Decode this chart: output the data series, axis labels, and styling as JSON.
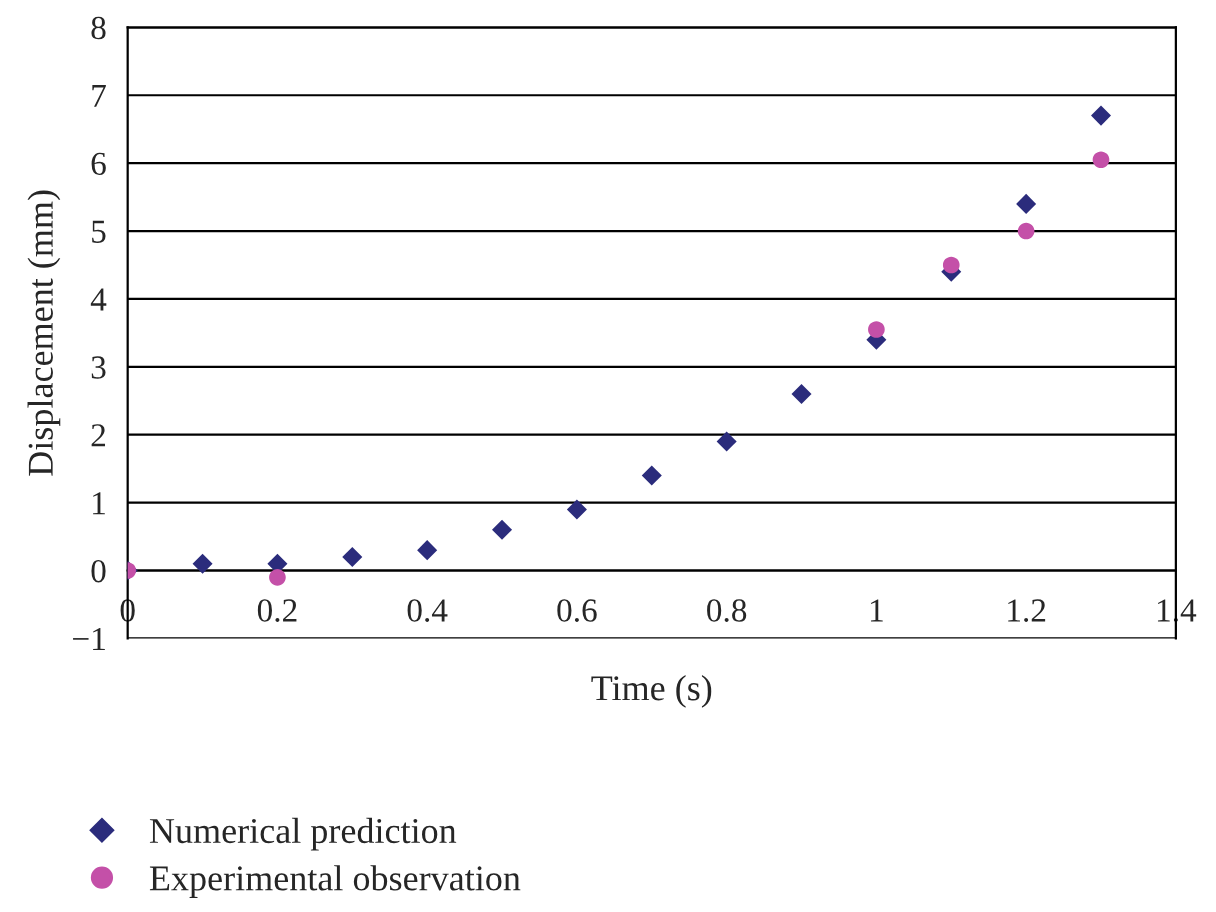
{
  "chart_data": {
    "type": "scatter",
    "xlabel": "Time (s)",
    "ylabel": "Displacement (mm)",
    "xlim": [
      0,
      1.4
    ],
    "xticks": [
      0,
      0.2,
      0.4,
      0.6,
      0.8,
      1,
      1.2,
      1.4
    ],
    "ylim": [
      -1,
      8
    ],
    "yticks": [
      {
        "value": -1,
        "label": "−1"
      },
      0,
      1,
      2,
      3,
      4,
      5,
      6,
      7,
      8
    ],
    "grid": "y",
    "legend": "bottom left",
    "series": [
      {
        "name": "Numerical prediction",
        "color": "#2b2c7c",
        "marker": "diamond",
        "x": [
          0,
          0.1,
          0.2,
          0.3,
          0.4,
          0.5,
          0.6,
          0.7,
          0.8,
          0.9,
          1.0,
          1.1,
          1.2,
          1.3
        ],
        "values": [
          0,
          0.1,
          0.1,
          0.2,
          0.3,
          0.6,
          0.9,
          1.4,
          1.9,
          2.6,
          3.4,
          4.4,
          5.4,
          6.7
        ]
      },
      {
        "name": "Experimental observation",
        "color": "#c450a8",
        "marker": "circle",
        "x": [
          0,
          0.2,
          1.0,
          1.1,
          1.2,
          1.3
        ],
        "values": [
          0,
          -0.1,
          3.55,
          4.5,
          5.0,
          6.05
        ]
      }
    ]
  }
}
